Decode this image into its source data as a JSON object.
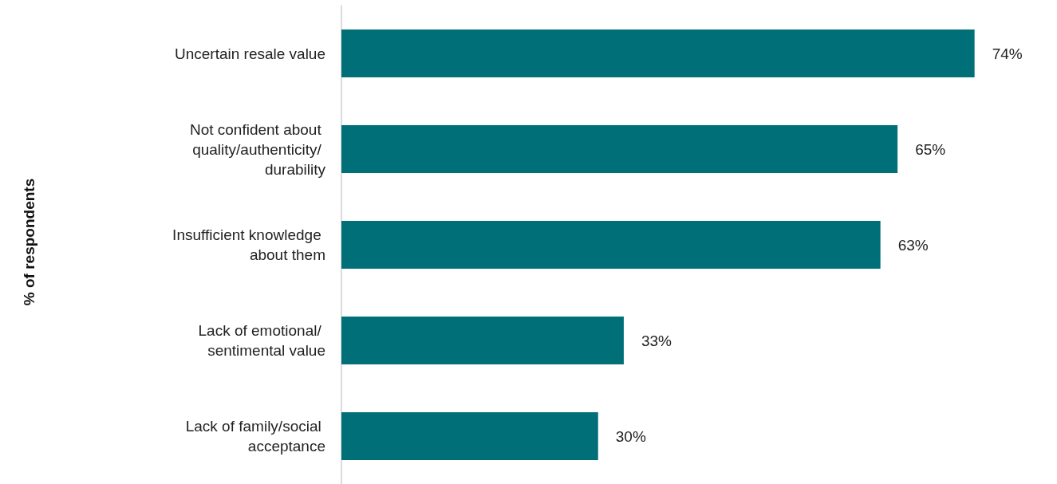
{
  "chart_data": {
    "type": "bar",
    "orientation": "horizontal",
    "annotations": [
      "% of respondents"
    ],
    "categories": [
      "Uncertain resale value",
      "Not confident about quality/authenticity/ durability",
      "Insufficient knowledge about them",
      "Lack of emotional/ sentimental value",
      "Lack of family/social acceptance"
    ],
    "values": [
      74,
      65,
      63,
      33,
      30
    ],
    "value_labels": [
      "74%",
      "65%",
      "63%",
      "33%",
      "30%"
    ],
    "color": "#006f78"
  }
}
